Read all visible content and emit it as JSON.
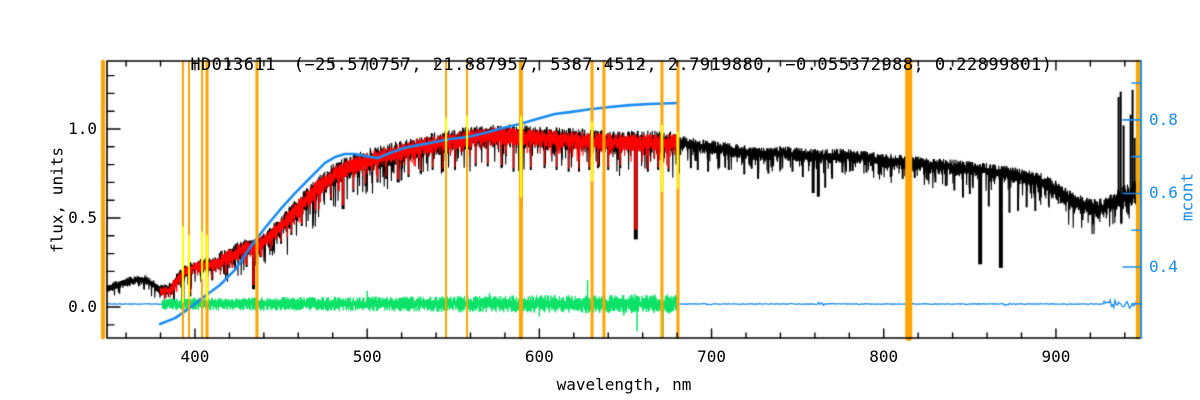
{
  "title": {
    "star": "HD013611",
    "params": "(−25.570757, 21.887957, 5387.4512, 2.7919880, −0.055372988, 0.22899801)"
  },
  "axes": {
    "xlabel": "wavelength, nm",
    "ylabel_left": "flux, units",
    "ylabel_right": "mcont",
    "x_ticks": [
      "400",
      "500",
      "600",
      "700",
      "800",
      "900"
    ],
    "y_ticks_left": [
      "0.0",
      "0.5",
      "1.0"
    ],
    "y_ticks_right": [
      "0.4",
      "0.6",
      "0.8"
    ]
  },
  "chart_data": {
    "type": "line",
    "title": "HD013611  (−25.570757, 21.887957, 5387.4512, 2.7919880, −0.055372988, 0.22899801)",
    "xlabel": "wavelength, nm",
    "ylabel": "flux, units",
    "ylabel2": "mcont",
    "grid": false,
    "legend": false,
    "xlim": [
      348.9,
      949.4
    ],
    "ylim_left": [
      -0.174,
      1.382
    ],
    "ylim_right": [
      0.207,
      0.96
    ],
    "x_major_ticks": [
      400,
      500,
      600,
      700,
      800,
      900
    ],
    "x_minor_step": 20,
    "y_left_major": [
      0.0,
      0.5,
      1.0
    ],
    "y_left_minor_step": 0.1,
    "y_right_major": [
      0.4,
      0.6,
      0.8
    ],
    "y_right_minor_step": 0.1,
    "colors": {
      "observed": "#000000",
      "model": "#ff0000",
      "residual": "#0ce268",
      "continuum": "#1b8cf2",
      "mask": "#ffa500",
      "masked_pixels": "#ffff00",
      "frame": "#000000"
    },
    "series": {
      "observed": {
        "name": "observed spectrum",
        "range_nm": [
          348.9,
          949.3
        ],
        "envelope": [
          [
            349,
            0.105
          ],
          [
            354,
            0.12
          ],
          [
            362,
            0.145
          ],
          [
            371,
            0.155
          ],
          [
            377,
            0.12
          ],
          [
            381,
            0.085
          ],
          [
            386,
            0.1
          ],
          [
            390,
            0.16
          ],
          [
            395,
            0.205
          ],
          [
            400,
            0.225
          ],
          [
            406,
            0.235
          ],
          [
            412,
            0.245
          ],
          [
            417,
            0.27
          ],
          [
            423,
            0.3
          ],
          [
            429,
            0.33
          ],
          [
            435,
            0.335
          ],
          [
            441,
            0.375
          ],
          [
            446,
            0.42
          ],
          [
            452,
            0.475
          ],
          [
            458,
            0.535
          ],
          [
            464,
            0.595
          ],
          [
            470,
            0.655
          ],
          [
            476,
            0.705
          ],
          [
            481,
            0.745
          ],
          [
            487,
            0.775
          ],
          [
            496,
            0.81
          ],
          [
            504,
            0.835
          ],
          [
            513,
            0.855
          ],
          [
            522,
            0.875
          ],
          [
            531,
            0.9
          ],
          [
            539,
            0.915
          ],
          [
            548,
            0.93
          ],
          [
            557,
            0.945
          ],
          [
            565,
            0.955
          ],
          [
            574,
            0.96
          ],
          [
            583,
            0.96
          ],
          [
            592,
            0.955
          ],
          [
            600,
            0.95
          ],
          [
            609,
            0.945
          ],
          [
            618,
            0.94
          ],
          [
            626,
            0.935
          ],
          [
            635,
            0.93
          ],
          [
            644,
            0.925
          ],
          [
            652,
            0.925
          ],
          [
            661,
            0.925
          ],
          [
            670,
            0.925
          ],
          [
            682,
            0.92
          ],
          [
            693,
            0.905
          ],
          [
            705,
            0.89
          ],
          [
            716,
            0.875
          ],
          [
            728,
            0.855
          ],
          [
            740,
            0.865
          ],
          [
            751,
            0.855
          ],
          [
            763,
            0.845
          ],
          [
            774,
            0.85
          ],
          [
            786,
            0.84
          ],
          [
            798,
            0.825
          ],
          [
            809,
            0.81
          ],
          [
            821,
            0.8
          ],
          [
            832,
            0.79
          ],
          [
            844,
            0.78
          ],
          [
            856,
            0.77
          ],
          [
            867,
            0.755
          ],
          [
            879,
            0.735
          ],
          [
            890,
            0.71
          ],
          [
            896,
            0.68
          ],
          [
            902,
            0.64
          ],
          [
            908,
            0.6
          ],
          [
            914,
            0.575
          ],
          [
            919,
            0.555
          ],
          [
            924,
            0.55
          ],
          [
            928,
            0.56
          ],
          [
            932,
            0.58
          ],
          [
            936,
            0.6
          ],
          [
            940,
            0.62
          ],
          [
            944,
            0.63
          ],
          [
            947,
            0.65
          ],
          [
            949,
            0.66
          ]
        ]
      },
      "model": {
        "name": "model fit",
        "range_nm": [
          379.8,
          680.3
        ]
      },
      "residual": {
        "name": "fit residual",
        "range_nm": [
          381,
          680.3
        ],
        "center_flux": 0.017,
        "spikes": [
          [
            500,
            0.075
          ],
          [
            546,
            0.05
          ],
          [
            571,
            0.06
          ],
          [
            589.3,
            -0.185
          ],
          [
            600,
            -0.07
          ],
          [
            609,
            0.05
          ],
          [
            628,
            0.135
          ],
          [
            635,
            -0.05
          ],
          [
            649,
            -0.065
          ],
          [
            656.7,
            -0.155
          ],
          [
            671,
            0.29
          ],
          [
            671.9,
            -0.19
          ],
          [
            680,
            0.03
          ]
        ]
      },
      "continuum": {
        "name": "continuum (mcont)",
        "points": [
          [
            379.7,
            0.245
          ],
          [
            388.4,
            0.261
          ],
          [
            397.1,
            0.289
          ],
          [
            405.8,
            0.321
          ],
          [
            414.5,
            0.351
          ],
          [
            423.2,
            0.392
          ],
          [
            431.9,
            0.452
          ],
          [
            440.6,
            0.506
          ],
          [
            449.3,
            0.555
          ],
          [
            458.1,
            0.601
          ],
          [
            466.8,
            0.642
          ],
          [
            475.5,
            0.683
          ],
          [
            481.3,
            0.699
          ],
          [
            487.1,
            0.707
          ],
          [
            492.9,
            0.707
          ],
          [
            498.7,
            0.702
          ],
          [
            506.2,
            0.696
          ],
          [
            513.2,
            0.71
          ],
          [
            521.9,
            0.724
          ],
          [
            530.6,
            0.732
          ],
          [
            539.3,
            0.74
          ],
          [
            548.0,
            0.748
          ],
          [
            557.9,
            0.753
          ],
          [
            568.3,
            0.764
          ],
          [
            578.8,
            0.778
          ],
          [
            588.7,
            0.789
          ],
          [
            598.6,
            0.802
          ],
          [
            609.0,
            0.816
          ],
          [
            617.7,
            0.821
          ],
          [
            629.3,
            0.829
          ],
          [
            640.9,
            0.835
          ],
          [
            652.5,
            0.84
          ],
          [
            664.1,
            0.843
          ],
          [
            680.4,
            0.846
          ]
        ]
      },
      "zero_line": {
        "name": "zero residual line",
        "flux_level": 0.017,
        "noise_regions": [
          [
            697,
            700,
            0.006
          ],
          [
            762,
            765,
            0.014
          ],
          [
            870,
            873,
            0.009
          ],
          [
            928,
            949,
            0.025
          ]
        ]
      }
    },
    "absorption_lines": [
      [
        393,
        0.03,
        3
      ],
      [
        397,
        0.06,
        3
      ],
      [
        404,
        0.16,
        2
      ],
      [
        407,
        0.135,
        2
      ],
      [
        410,
        0.15,
        2
      ],
      [
        414,
        0.21,
        2
      ],
      [
        420,
        0.22,
        2
      ],
      [
        427,
        0.245,
        2
      ],
      [
        430,
        0.225,
        2
      ],
      [
        434,
        0.1,
        3
      ],
      [
        438,
        0.28,
        2
      ],
      [
        444,
        0.315,
        2
      ],
      [
        450,
        0.355,
        2
      ],
      [
        456,
        0.405,
        2
      ],
      [
        462,
        0.455,
        2
      ],
      [
        470,
        0.525,
        2
      ],
      [
        479,
        0.6,
        2
      ],
      [
        486,
        0.55,
        3
      ],
      [
        492,
        0.645,
        2
      ],
      [
        499,
        0.68,
        2
      ],
      [
        506,
        0.7,
        2
      ],
      [
        511,
        0.72,
        2
      ],
      [
        518,
        0.7,
        3
      ],
      [
        524,
        0.73,
        2
      ],
      [
        531,
        0.75,
        2
      ],
      [
        538,
        0.77,
        2
      ],
      [
        544,
        0.76,
        2
      ],
      [
        551,
        0.77,
        2
      ],
      [
        558,
        0.78,
        2
      ],
      [
        563,
        0.79,
        2
      ],
      [
        570,
        0.79,
        2
      ],
      [
        578,
        0.78,
        2
      ],
      [
        585,
        0.76,
        2
      ],
      [
        589.3,
        0.55,
        3
      ],
      [
        595,
        0.77,
        2
      ],
      [
        603,
        0.78,
        2
      ],
      [
        610,
        0.77,
        2
      ],
      [
        617,
        0.76,
        2
      ],
      [
        623,
        0.76,
        2
      ],
      [
        629,
        0.77,
        2
      ],
      [
        634,
        0.78,
        2
      ],
      [
        640,
        0.77,
        2
      ],
      [
        647,
        0.78,
        2
      ],
      [
        656,
        0.38,
        4
      ],
      [
        663,
        0.76,
        2
      ],
      [
        669,
        0.77,
        2
      ],
      [
        675,
        0.76,
        2
      ],
      [
        681,
        0.75,
        2
      ],
      [
        688,
        0.78,
        2
      ],
      [
        692,
        0.77,
        2
      ],
      [
        698,
        0.76,
        2
      ],
      [
        704,
        0.78,
        2
      ],
      [
        710,
        0.77,
        2
      ],
      [
        719,
        0.745,
        2
      ],
      [
        727,
        0.72,
        2
      ],
      [
        733,
        0.75,
        2
      ],
      [
        740,
        0.77,
        2
      ],
      [
        747,
        0.76,
        2
      ],
      [
        753,
        0.73,
        2
      ],
      [
        759,
        0.64,
        3
      ],
      [
        762,
        0.62,
        3
      ],
      [
        766,
        0.67,
        2
      ],
      [
        770,
        0.72,
        2
      ],
      [
        776,
        0.755,
        2
      ],
      [
        782,
        0.765,
        2
      ],
      [
        790,
        0.755,
        2
      ],
      [
        797,
        0.745,
        2
      ],
      [
        804,
        0.73,
        2
      ],
      [
        811,
        0.72,
        2
      ],
      [
        818,
        0.725,
        2
      ],
      [
        825,
        0.715,
        2
      ],
      [
        830,
        0.7,
        2
      ],
      [
        836,
        0.68,
        2
      ],
      [
        841,
        0.655,
        2
      ],
      [
        846,
        0.615,
        2
      ],
      [
        850,
        0.635,
        2
      ],
      [
        856,
        0.24,
        4
      ],
      [
        861,
        0.565,
        2
      ],
      [
        868,
        0.22,
        4
      ],
      [
        873,
        0.53,
        2
      ],
      [
        878,
        0.54,
        2
      ],
      [
        883,
        0.56,
        2
      ],
      [
        888,
        0.54,
        2
      ]
    ],
    "emission_spikes": [
      [
        936.4,
        1.18
      ],
      [
        937.6,
        1.21
      ],
      [
        939.3,
        1.02
      ],
      [
        943.4,
        1.08
      ],
      [
        944.5,
        1.22
      ],
      [
        945.7,
        0.95
      ]
    ],
    "mask_lines": [
      [
        346.6,
        4
      ],
      [
        393,
        2
      ],
      [
        396.5,
        2
      ],
      [
        404.1,
        2
      ],
      [
        407,
        3
      ],
      [
        436,
        3
      ],
      [
        545.8,
        2
      ],
      [
        558,
        2
      ],
      [
        589.3,
        4
      ],
      [
        630.6,
        3
      ],
      [
        637.5,
        3
      ],
      [
        671.2,
        3
      ],
      [
        680.5,
        3
      ],
      [
        814.5,
        7
      ],
      [
        947.6,
        4
      ]
    ],
    "masked_pixel_marks": [
      [
        393,
        0.45,
        0.03
      ],
      [
        396.5,
        0.4,
        0.05
      ],
      [
        404.1,
        0.42,
        0.16
      ],
      [
        407,
        0.4,
        0.04
      ],
      [
        545.8,
        1.06,
        0.87
      ],
      [
        558,
        1.07,
        0.89
      ],
      [
        589.3,
        1.07,
        0.62
      ],
      [
        630.6,
        1.04,
        0.71
      ],
      [
        671.2,
        1.02,
        0.65
      ],
      [
        680.3,
        0.98,
        0.67
      ]
    ]
  }
}
